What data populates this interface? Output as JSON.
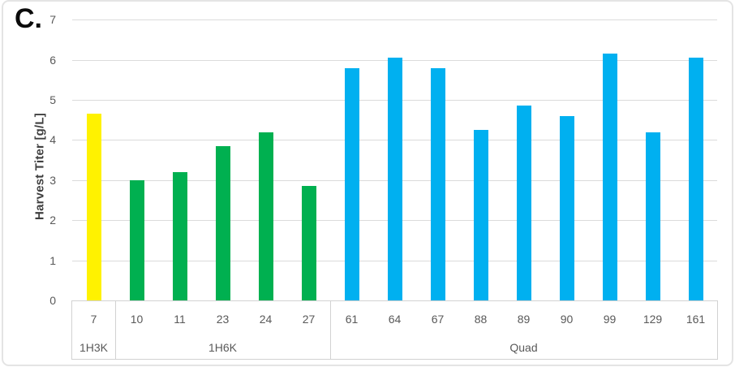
{
  "panel_label": "C.",
  "chart_data": {
    "type": "bar",
    "title": "",
    "xlabel": "",
    "ylabel": "Harvest Titer [g/L]",
    "ylim": [
      0,
      7
    ],
    "yticks": [
      0,
      1,
      2,
      3,
      4,
      5,
      6,
      7
    ],
    "grid": true,
    "legend_position": "none",
    "groups": [
      {
        "name": "1H3K",
        "color": "#FFF200",
        "categories": [
          "7"
        ],
        "values": [
          4.65
        ]
      },
      {
        "name": "1H6K",
        "color": "#00B050",
        "categories": [
          "10",
          "11",
          "23",
          "24",
          "27"
        ],
        "values": [
          3.0,
          3.2,
          3.85,
          4.2,
          2.85
        ]
      },
      {
        "name": "Quad",
        "color": "#00B0F0",
        "categories": [
          "61",
          "64",
          "67",
          "88",
          "89",
          "90",
          "99",
          "129",
          "161"
        ],
        "values": [
          5.8,
          6.05,
          5.8,
          4.25,
          4.85,
          4.6,
          6.15,
          4.2,
          6.05
        ]
      }
    ]
  },
  "colors": {
    "gridline": "#DBDBDB",
    "axis_box_border": "#D2D2D2",
    "tick_text": "#595959",
    "axis_title_text": "#3F3F3F",
    "figure_border": "#E4E4E4"
  }
}
